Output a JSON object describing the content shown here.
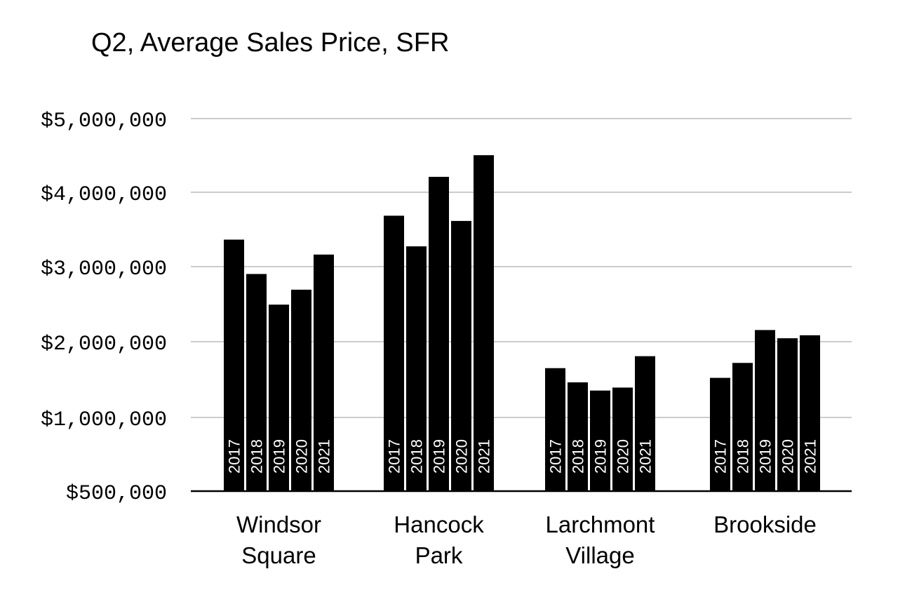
{
  "chart_data": {
    "type": "bar",
    "title": "Q2, Average Sales Price, SFR",
    "xlabel": "",
    "ylabel": "",
    "ylim": [
      500000,
      5000000
    ],
    "yticks": [
      500000,
      1000000,
      2000000,
      3000000,
      4000000,
      5000000
    ],
    "ytick_labels": [
      "$500,000",
      "$1,000,000",
      "$2,000,000",
      "$3,000,000",
      "$4,000,000",
      "$5,000,000"
    ],
    "categories": [
      [
        "Windsor",
        "Square"
      ],
      [
        "Hancock",
        "Park"
      ],
      [
        "Larchmont",
        "Village"
      ],
      [
        "Brookside"
      ]
    ],
    "series": [
      {
        "name": "2017",
        "values": [
          3380000,
          3700000,
          1660000,
          1530000
        ]
      },
      {
        "name": "2018",
        "values": [
          2920000,
          3290000,
          1470000,
          1730000
        ]
      },
      {
        "name": "2019",
        "values": [
          2510000,
          4220000,
          1360000,
          2170000
        ]
      },
      {
        "name": "2020",
        "values": [
          2710000,
          3630000,
          1400000,
          2060000
        ]
      },
      {
        "name": "2021",
        "values": [
          3180000,
          4510000,
          1820000,
          2100000
        ]
      }
    ],
    "bar_color": "#000000",
    "bar_label_color": "#ffffff",
    "grid": true,
    "legend": "none (series names shown vertically inside bars)"
  }
}
